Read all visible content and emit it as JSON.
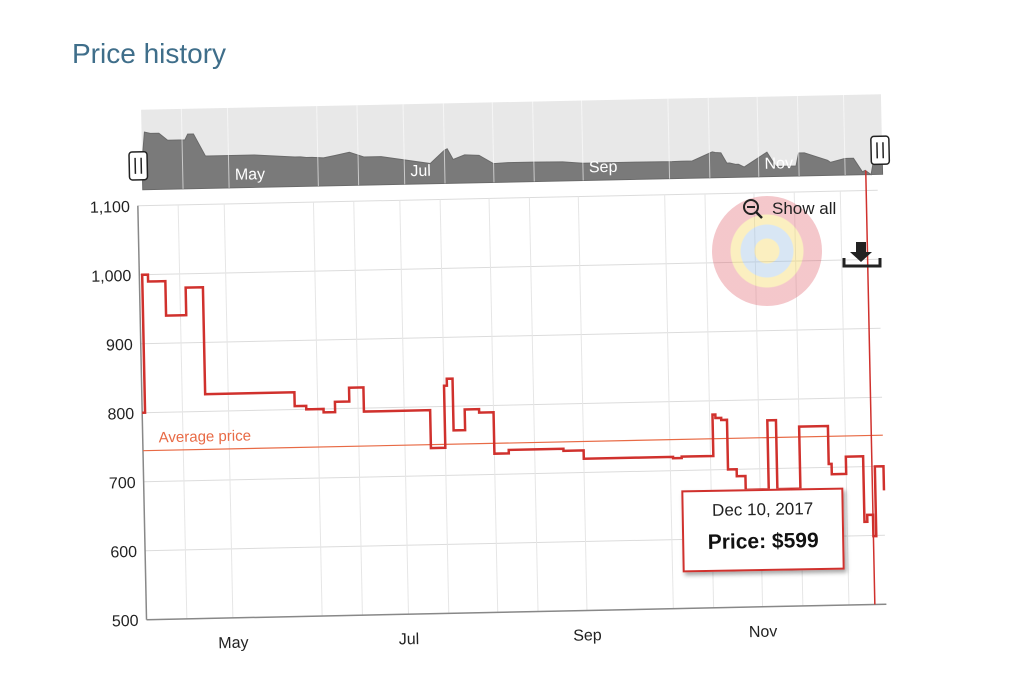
{
  "page": {
    "title": "Price history"
  },
  "controls": {
    "show_all_label": "Show all"
  },
  "tooltip": {
    "date": "Dec 10, 2017",
    "price_label": "Price: $599"
  },
  "colors": {
    "line": "#d0312d",
    "average": "#e86a45",
    "title": "#3f6e8a",
    "navigator_fill": "#7a7a7a",
    "navigator_bg": "#e8e8e8"
  },
  "icons": {
    "show_all": "zoom-out-icon",
    "download": "download-icon"
  },
  "chart_data": {
    "type": "line",
    "title": "Price history",
    "xlabel": "",
    "ylabel": "",
    "ylim": [
      500,
      1100
    ],
    "yticks": [
      500,
      600,
      700,
      800,
      900,
      1000,
      1100
    ],
    "y_tick_labels": [
      "500",
      "600",
      "700",
      "800",
      "900",
      "1,000",
      "1,100"
    ],
    "x_tick_labels": [
      "May",
      "Jul",
      "Sep",
      "Nov"
    ],
    "x_tick_dates": [
      "2017-05-01",
      "2017-07-01",
      "2017-09-01",
      "2017-11-01"
    ],
    "xlim": [
      "2017-04-01",
      "2017-12-14"
    ],
    "grid": true,
    "average_price": {
      "label": "Average price",
      "value": 745
    },
    "series": [
      {
        "x": [
          "2017-04-01",
          "2017-04-02",
          "2017-04-04",
          "2017-04-07",
          "2017-04-10",
          "2017-04-16",
          "2017-04-17",
          "2017-04-19",
          "2017-04-23",
          "2017-04-24",
          "2017-05-10",
          "2017-05-24",
          "2017-05-26",
          "2017-05-28",
          "2017-05-30",
          "2017-06-03",
          "2017-06-07",
          "2017-06-12",
          "2017-06-17",
          "2017-06-23",
          "2017-07-10",
          "2017-07-15",
          "2017-07-16",
          "2017-07-18",
          "2017-07-22",
          "2017-07-27",
          "2017-08-01",
          "2017-08-06",
          "2017-08-15",
          "2017-08-25",
          "2017-09-01",
          "2017-09-20",
          "2017-10-02",
          "2017-10-05",
          "2017-10-09",
          "2017-10-16",
          "2017-10-17",
          "2017-10-19",
          "2017-10-21",
          "2017-10-22",
          "2017-10-24",
          "2017-10-25",
          "2017-10-27",
          "2017-11-04",
          "2017-11-07",
          "2017-11-14",
          "2017-11-15",
          "2017-11-17",
          "2017-11-25",
          "2017-11-26",
          "2017-12-01",
          "2017-12-02",
          "2017-12-04",
          "2017-12-07",
          "2017-12-08",
          "2017-12-10",
          "2017-12-11",
          "2017-12-12",
          "2017-12-14"
        ],
        "y": [
          800,
          1000,
          990,
          990,
          940,
          940,
          980,
          980,
          825,
          825,
          825,
          805,
          805,
          800,
          800,
          795,
          810,
          830,
          795,
          795,
          740,
          830,
          840,
          765,
          795,
          790,
          730,
          735,
          735,
          732,
          720,
          720,
          718,
          720,
          720,
          780,
          775,
          772,
          700,
          700,
          690,
          690,
          670,
          770,
          670,
          670,
          760,
          760,
          705,
          690,
          715,
          715,
          715,
          620,
          630,
          599,
          700,
          700,
          665
        ]
      }
    ]
  }
}
